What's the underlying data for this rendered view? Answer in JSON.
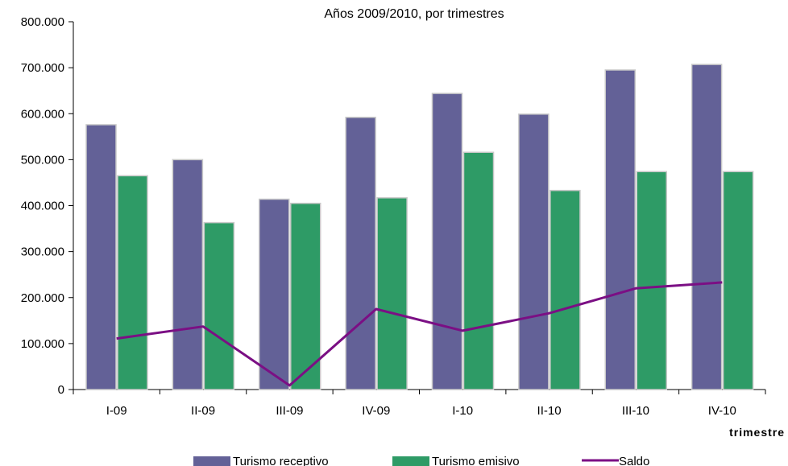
{
  "chart_data": {
    "type": "bar",
    "title": "Años 2009/2010, por trimestres",
    "xlabel": "trimestre",
    "ylabel": "",
    "categories": [
      "I-09",
      "II-09",
      "III-09",
      "IV-09",
      "I-10",
      "II-10",
      "III-10",
      "IV-10"
    ],
    "ylim": [
      0,
      800000
    ],
    "y_ticks": [
      0,
      100000,
      200000,
      300000,
      400000,
      500000,
      600000,
      700000,
      800000
    ],
    "y_tick_labels": [
      "0",
      "100.000",
      "200.000",
      "300.000",
      "400.000",
      "500.000",
      "600.000",
      "700.000",
      "800.000"
    ],
    "grid": false,
    "legend_position": "bottom",
    "series": [
      {
        "name": "Turismo receptivo",
        "type": "bar",
        "color": "#636197",
        "values": [
          576000,
          500000,
          414000,
          592000,
          644000,
          599000,
          695000,
          707000
        ]
      },
      {
        "name": "Turismo emisivo",
        "type": "bar",
        "color": "#2e9b66",
        "values": [
          465000,
          363000,
          405000,
          417000,
          516000,
          433000,
          474000,
          474000
        ]
      },
      {
        "name": "Saldo",
        "type": "line",
        "color": "#7b0f84",
        "values": [
          111000,
          137000,
          9000,
          175000,
          128000,
          166000,
          220000,
          233000
        ]
      }
    ]
  }
}
